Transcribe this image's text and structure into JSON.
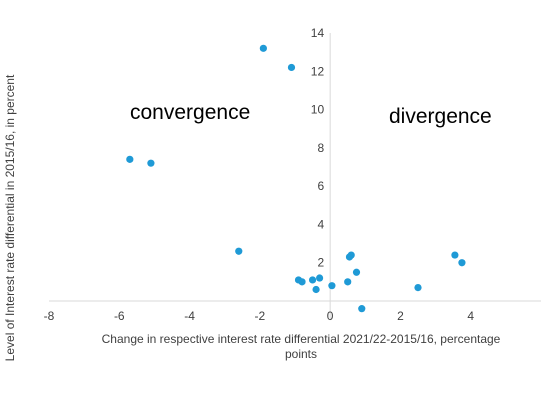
{
  "chart_data": {
    "type": "scatter",
    "title": "",
    "xlabel_line1": "Change in respective interest rate differential 2021/22-2015/16, percentage",
    "xlabel_line2": "points",
    "ylabel": "Level of Interest rate differential in 2015/16, in percent",
    "xlim": [
      -8,
      6
    ],
    "ylim": [
      -1,
      14
    ],
    "xticks": [
      -8,
      -6,
      -4,
      -2,
      0,
      2,
      4
    ],
    "yticks": [
      2,
      4,
      6,
      8,
      10,
      12,
      14
    ],
    "xtick_labels": [
      "-8",
      "-6",
      "-4",
      "-2",
      "0",
      "2",
      "4"
    ],
    "ytick_labels": [
      "2",
      "4",
      "6",
      "8",
      "10",
      "12",
      "14"
    ],
    "grid": false,
    "annotations": [
      {
        "id": "convergence",
        "text": "convergence"
      },
      {
        "id": "divergence",
        "text": "divergence"
      }
    ],
    "series": [
      {
        "color": "#1f9ad6",
        "points": [
          {
            "x": -5.7,
            "y": 7.4
          },
          {
            "x": -5.1,
            "y": 7.2
          },
          {
            "x": -2.6,
            "y": 2.6
          },
          {
            "x": -1.9,
            "y": 13.2
          },
          {
            "x": -1.1,
            "y": 12.2
          },
          {
            "x": -0.9,
            "y": 1.1
          },
          {
            "x": -0.8,
            "y": 1.0
          },
          {
            "x": -0.5,
            "y": 1.1
          },
          {
            "x": -0.4,
            "y": 0.6
          },
          {
            "x": -0.3,
            "y": 1.2
          },
          {
            "x": 0.05,
            "y": 0.8
          },
          {
            "x": 0.5,
            "y": 1.0
          },
          {
            "x": 0.55,
            "y": 2.3
          },
          {
            "x": 0.6,
            "y": 2.4
          },
          {
            "x": 0.75,
            "y": 1.5
          },
          {
            "x": 0.9,
            "y": -0.4
          },
          {
            "x": 2.5,
            "y": 0.7
          },
          {
            "x": 3.55,
            "y": 2.4
          },
          {
            "x": 3.75,
            "y": 2.0
          }
        ]
      }
    ]
  }
}
